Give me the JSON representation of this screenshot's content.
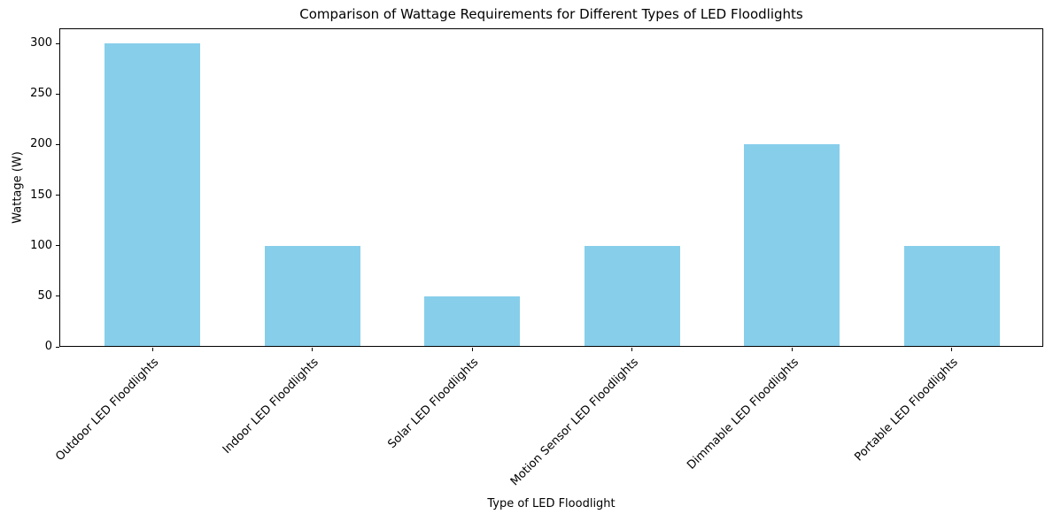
{
  "chart_data": {
    "type": "bar",
    "title": "Comparison of Wattage Requirements for Different Types of LED Floodlights",
    "xlabel": "Type of LED Floodlight",
    "ylabel": "Wattage (W)",
    "categories": [
      "Outdoor LED Floodlights",
      "Indoor LED Floodlights",
      "Solar LED Floodlights",
      "Motion Sensor LED Floodlights",
      "Dimmable LED Floodlights",
      "Portable LED Floodlights"
    ],
    "values": [
      300,
      100,
      50,
      100,
      200,
      100
    ],
    "yticks": [
      0,
      50,
      100,
      150,
      200,
      250,
      300
    ],
    "ylim": [
      0,
      315
    ],
    "bar_color": "#87CEEB",
    "grid": false,
    "legend": null,
    "x_tick_rotation": 45
  }
}
